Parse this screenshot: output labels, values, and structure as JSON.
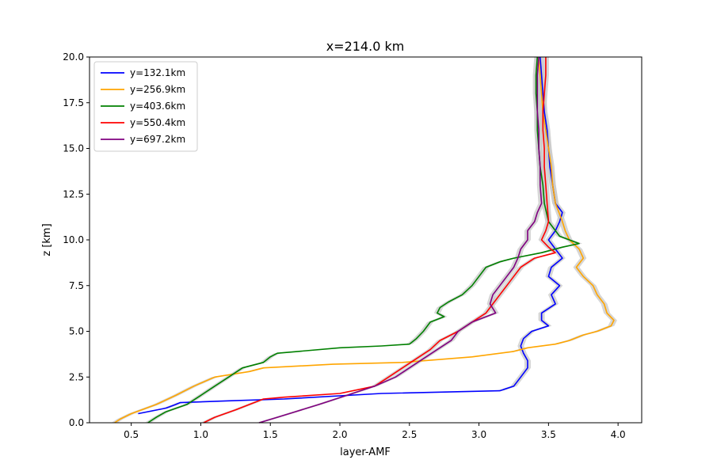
{
  "chart_data": {
    "type": "line",
    "title": "x=214.0 km",
    "xlabel": "layer-AMF",
    "ylabel": "z [km]",
    "xlim": [
      0.2,
      4.17
    ],
    "ylim": [
      0,
      20
    ],
    "xticks": [
      "0.5",
      "1.0",
      "1.5",
      "2.0",
      "2.5",
      "3.0",
      "3.5",
      "4.0"
    ],
    "yticks": [
      "0.0",
      "2.5",
      "5.0",
      "7.5",
      "10.0",
      "12.5",
      "15.0",
      "17.5",
      "20.0"
    ],
    "legend_position": "upper-left",
    "uncertainty_band_color": "#c8c8c8",
    "series": [
      {
        "name": "y=132.1km",
        "color": "#0000ff",
        "z": [
          0.5,
          0.8,
          1.0,
          1.1,
          1.2,
          1.3,
          1.6,
          1.75,
          2.0,
          2.5,
          3.0,
          3.4,
          3.8,
          4.2,
          4.6,
          5.0,
          5.3,
          5.6,
          6.0,
          6.5,
          7.0,
          7.5,
          8.0,
          8.5,
          9.0,
          9.5,
          10.0,
          10.5,
          11.0,
          11.5,
          12.0,
          13.0,
          14.0,
          15.0,
          16.0,
          17.0,
          18.0,
          19.0,
          20.0
        ],
        "x": [
          0.55,
          0.75,
          0.82,
          0.85,
          1.2,
          1.6,
          2.3,
          3.15,
          3.25,
          3.3,
          3.35,
          3.35,
          3.32,
          3.3,
          3.32,
          3.38,
          3.5,
          3.45,
          3.45,
          3.55,
          3.52,
          3.58,
          3.5,
          3.52,
          3.6,
          3.55,
          3.5,
          3.55,
          3.58,
          3.6,
          3.55,
          3.53,
          3.51,
          3.5,
          3.49,
          3.47,
          3.46,
          3.45,
          3.44
        ]
      },
      {
        "name": "y=256.9km",
        "color": "#ffa500",
        "z": [
          0.0,
          0.2,
          0.5,
          1.0,
          1.5,
          2.0,
          2.5,
          2.8,
          3.0,
          3.2,
          3.3,
          3.6,
          3.9,
          4.1,
          4.3,
          4.5,
          4.8,
          5.0,
          5.3,
          5.6,
          6.0,
          6.5,
          7.0,
          7.5,
          8.0,
          8.5,
          9.0,
          9.5,
          10.0,
          10.5,
          11.0,
          12.0,
          13.0,
          14.0,
          15.0,
          16.0,
          17.0,
          18.0,
          19.0,
          20.0
        ],
        "x": [
          0.38,
          0.42,
          0.5,
          0.68,
          0.82,
          0.95,
          1.1,
          1.35,
          1.45,
          1.95,
          2.45,
          2.95,
          3.25,
          3.35,
          3.55,
          3.65,
          3.75,
          3.85,
          3.95,
          3.97,
          3.92,
          3.9,
          3.85,
          3.82,
          3.75,
          3.7,
          3.75,
          3.72,
          3.65,
          3.62,
          3.6,
          3.55,
          3.53,
          3.52,
          3.5,
          3.48,
          3.46,
          3.45,
          3.44,
          3.43
        ]
      },
      {
        "name": "y=403.6km",
        "color": "#008000",
        "z": [
          0.0,
          0.3,
          0.6,
          1.0,
          1.5,
          2.0,
          2.5,
          3.0,
          3.3,
          3.6,
          3.8,
          3.9,
          4.1,
          4.2,
          4.3,
          4.6,
          5.0,
          5.5,
          5.8,
          6.0,
          6.3,
          6.6,
          7.0,
          7.5,
          8.0,
          8.5,
          8.8,
          9.0,
          9.3,
          9.6,
          9.8,
          10.0,
          10.2,
          10.5,
          11.0,
          12.0,
          13.0,
          14.0,
          15.0,
          16.0,
          17.0,
          18.0,
          19.0,
          20.0
        ],
        "x": [
          0.62,
          0.68,
          0.75,
          0.9,
          1.0,
          1.1,
          1.2,
          1.3,
          1.45,
          1.5,
          1.55,
          1.7,
          2.0,
          2.3,
          2.5,
          2.55,
          2.6,
          2.65,
          2.75,
          2.7,
          2.72,
          2.78,
          2.88,
          2.95,
          3.0,
          3.05,
          3.15,
          3.25,
          3.45,
          3.6,
          3.72,
          3.65,
          3.58,
          3.55,
          3.5,
          3.47,
          3.46,
          3.44,
          3.43,
          3.42,
          3.42,
          3.41,
          3.41,
          3.42
        ]
      },
      {
        "name": "y=550.4km",
        "color": "#ff0000",
        "z": [
          0.0,
          0.3,
          0.7,
          1.0,
          1.3,
          1.4,
          1.6,
          2.0,
          2.5,
          3.0,
          3.5,
          4.0,
          4.5,
          5.0,
          5.5,
          6.0,
          6.5,
          7.0,
          7.5,
          8.0,
          8.5,
          9.0,
          9.3,
          9.6,
          10.0,
          10.5,
          11.0,
          12.0,
          13.0,
          14.0,
          15.0,
          16.0,
          17.0,
          18.0,
          19.0,
          20.0
        ],
        "x": [
          1.02,
          1.1,
          1.25,
          1.35,
          1.45,
          1.6,
          2.0,
          2.25,
          2.35,
          2.45,
          2.55,
          2.65,
          2.72,
          2.85,
          2.95,
          3.05,
          3.1,
          3.15,
          3.2,
          3.25,
          3.3,
          3.4,
          3.55,
          3.5,
          3.45,
          3.48,
          3.5,
          3.49,
          3.48,
          3.47,
          3.47,
          3.46,
          3.46,
          3.47,
          3.48,
          3.48
        ]
      },
      {
        "name": "y=697.2km",
        "color": "#800080",
        "z": [
          0.0,
          0.3,
          0.6,
          1.0,
          1.5,
          2.0,
          2.5,
          3.0,
          3.5,
          4.0,
          4.5,
          5.0,
          5.5,
          6.0,
          6.5,
          7.0,
          7.5,
          8.0,
          8.5,
          9.0,
          9.5,
          10.0,
          10.5,
          11.0,
          11.5,
          12.0,
          13.0,
          14.0,
          15.0,
          16.0,
          17.0,
          18.0,
          19.0,
          20.0
        ],
        "x": [
          1.42,
          1.55,
          1.68,
          1.85,
          2.05,
          2.25,
          2.4,
          2.5,
          2.6,
          2.7,
          2.8,
          2.85,
          2.95,
          3.12,
          3.08,
          3.1,
          3.15,
          3.2,
          3.25,
          3.28,
          3.3,
          3.35,
          3.35,
          3.4,
          3.42,
          3.45,
          3.44,
          3.44,
          3.43,
          3.43,
          3.42,
          3.42,
          3.42,
          3.43
        ]
      }
    ]
  }
}
